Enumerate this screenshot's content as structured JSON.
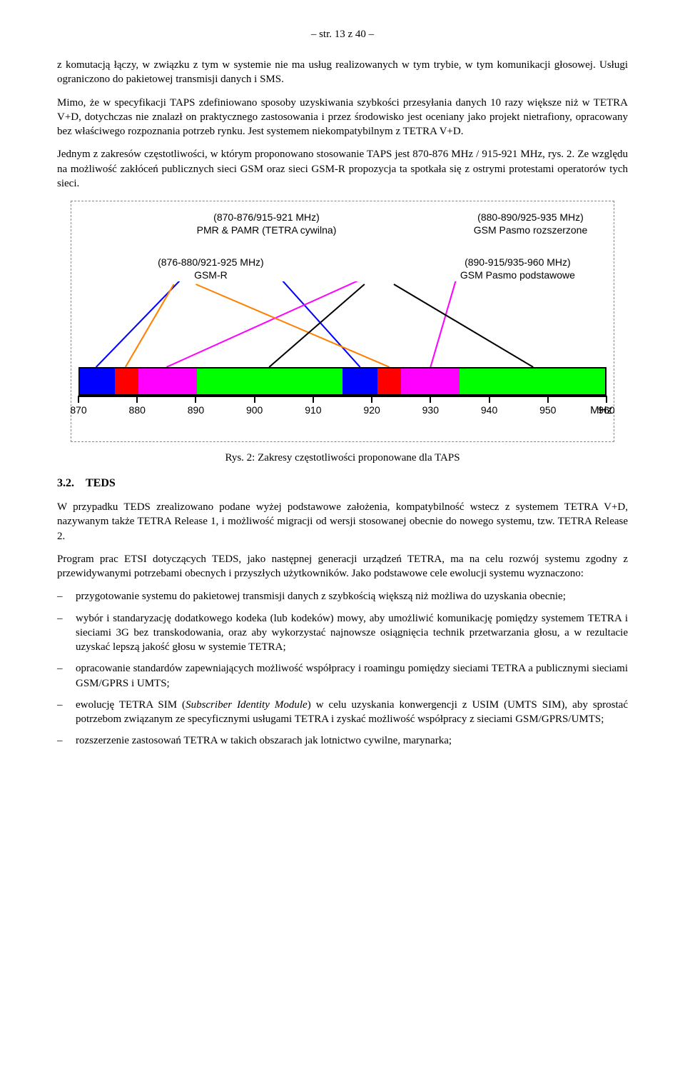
{
  "page_header": "– str. 13 z 40 –",
  "para1": "z komutacją łączy, w związku z tym w systemie nie ma usług realizowanych w tym trybie, w tym komunikacji głosowej. Usługi ograniczono do pakietowej transmisji danych i SMS.",
  "para2": "Mimo, że w specyfikacji TAPS zdefiniowano sposoby uzyskiwania szybkości przesyłania danych 10 razy większe niż w TETRA V+D, dotychczas nie znalazł on praktycznego zastosowania i przez środowisko jest oceniany jako projekt nietrafiony, opracowany bez właściwego rozpoznania potrzeb rynku. Jest systemem niekompatybilnym z TETRA V+D.",
  "para3": "Jednym z zakresów częstotliwości, w którym proponowano stosowanie TAPS jest 870-876 MHz / 915-921 MHz, rys. 2. Ze względu na możliwość zakłóceń publicznych sieci GSM oraz sieci GSM-R propozycja ta spotkała się z ostrymi protestami operatorów tych sieci.",
  "figure": {
    "labels": {
      "top_left_line1": "(870-876/915-921 MHz)",
      "top_left_line2": "PMR & PAMR (TETRA cywilna)",
      "top_right_line1": "(880-890/925-935 MHz)",
      "top_right_line2": "GSM Pasmo rozszerzone",
      "mid_left_line1": "(876-880/921-925 MHz)",
      "mid_left_line2": "GSM-R",
      "mid_right_line1": "(890-915/935-960 MHz)",
      "mid_right_line2": "GSM Pasmo podstawowe"
    },
    "line_colors": {
      "blue": "#0000ff",
      "magenta": "#ff00ff",
      "orange": "#ff8000",
      "black": "#000000"
    },
    "segments": [
      {
        "start": 870,
        "end": 876,
        "color": "#0000ff"
      },
      {
        "start": 876,
        "end": 880,
        "color": "#ff0000"
      },
      {
        "start": 880,
        "end": 890,
        "color": "#ff00ff"
      },
      {
        "start": 890,
        "end": 915,
        "color": "#00ff00"
      },
      {
        "start": 915,
        "end": 921,
        "color": "#0000ff"
      },
      {
        "start": 921,
        "end": 925,
        "color": "#ff0000"
      },
      {
        "start": 925,
        "end": 935,
        "color": "#ff00ff"
      },
      {
        "start": 935,
        "end": 960,
        "color": "#00ff00"
      }
    ],
    "axis": {
      "min": 870,
      "max": 960,
      "step": 10,
      "unit": "MHz",
      "ticks": [
        870,
        880,
        890,
        900,
        910,
        920,
        930,
        940,
        950,
        960
      ]
    }
  },
  "caption": "Rys. 2: Zakresy częstotliwości proponowane dla TAPS",
  "section_number": "3.2.",
  "section_title": "TEDS",
  "para4": "W przypadku TEDS zrealizowano podane wyżej podstawowe założenia, kompatybilność wstecz z systemem TETRA V+D, nazywanym także TETRA Release 1, i możliwość migracji od wersji stosowanej obecnie do nowego systemu, tzw. TETRA Release 2.",
  "para5": "Program prac ETSI dotyczących TEDS, jako następnej generacji urządzeń TETRA, ma na celu rozwój systemu zgodny z przewidywanymi potrzebami obecnych i przyszłych użytkowników. Jako podstawowe cele ewolucji systemu wyznaczono:",
  "bullets": [
    "przygotowanie systemu do pakietowej transmisji danych z szybkością większą niż możliwa do uzyskania obecnie;",
    "wybór i standaryzację dodatkowego kodeka (lub kodeków) mowy, aby umożliwić komunikację pomiędzy systemem TETRA i sieciami 3G bez transkodowania, oraz aby wykorzystać najnowsze osiągnięcia technik przetwarzania głosu, a w rezultacie uzyskać lepszą jakość głosu w systemie TETRA;",
    "opracowanie standardów zapewniających możliwość współpracy i roamingu pomiędzy sieciami TETRA a publicznymi sieciami GSM/GPRS i UMTS;",
    "ewolucję TETRA SIM (Subscriber Identity Module) w celu uzyskania konwergencji z USIM (UMTS SIM), aby sprostać potrzebom związanym ze specyficznymi usługami TETRA i zyskać możliwość współpracy z sieciami GSM/GPRS/UMTS;",
    "rozszerzenie zastosowań TETRA w takich obszarach jak lotnictwo cywilne, marynarka;"
  ]
}
